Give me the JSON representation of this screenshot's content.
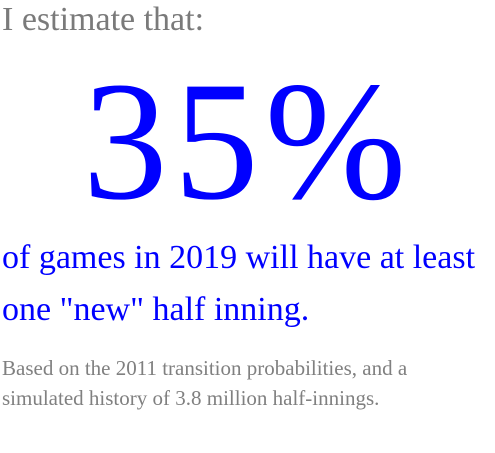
{
  "intro": "I estimate that:",
  "headline_value": "35%",
  "statement": "of games in 2019 will have at least one \"new\" half inning.",
  "note": "Based on the 2011 transition probabilities, and a simulated history of 3.8 million half-innings.",
  "colors": {
    "accent": "#0000ff",
    "muted": "#7a7a7a",
    "note": "#808080",
    "background": "#ffffff"
  }
}
